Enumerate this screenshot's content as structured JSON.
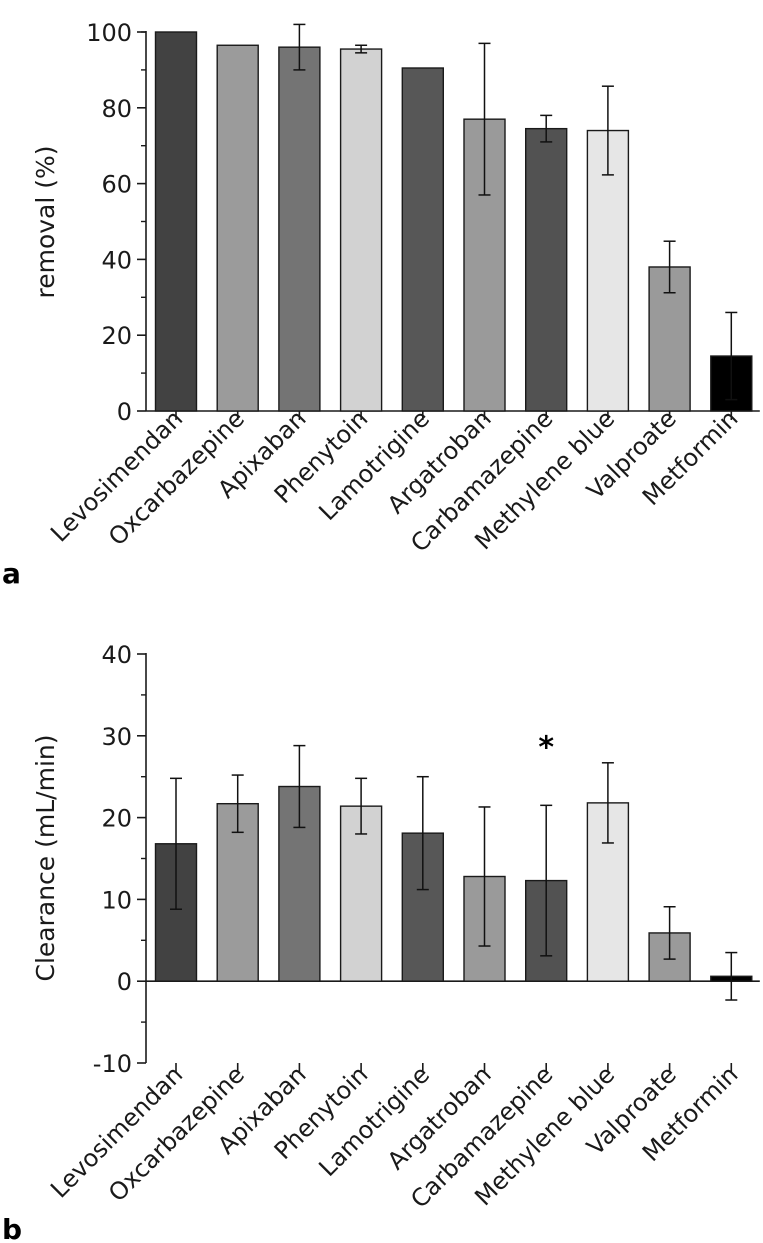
{
  "chart_data": [
    {
      "panel": "a",
      "type": "bar",
      "ylabel": "removal (%)",
      "xlabel": "",
      "ylim": [
        0,
        100
      ],
      "yticks": [
        0,
        20,
        40,
        60,
        80,
        100
      ],
      "ytick_labels": [
        "0",
        "20",
        "40",
        "60",
        "80",
        "100"
      ],
      "categories": [
        "Levosimendan",
        "Oxcarbazepine",
        "Apixaban",
        "Phenytoin",
        "Lamotrigine",
        "Argatroban",
        "Carbamazepine",
        "Methylene blue",
        "Valproate",
        "Metformin"
      ],
      "values": [
        100,
        96.5,
        96,
        95.5,
        90.5,
        77,
        74.5,
        74,
        38,
        14.5
      ],
      "errors": [
        0,
        0,
        6,
        1,
        0,
        20,
        3.5,
        11.7,
        6.8,
        11.5
      ],
      "colors": [
        "#424242",
        "#9b9b9b",
        "#747474",
        "#d2d2d2",
        "#575757",
        "#9a9a9a",
        "#525252",
        "#e6e6e6",
        "#9a9a9a",
        "#000000"
      ],
      "annotations": []
    },
    {
      "panel": "b",
      "type": "bar",
      "ylabel": "Clearance (mL/min)",
      "xlabel": "",
      "ylim": [
        -10,
        40
      ],
      "yticks": [
        -10,
        0,
        10,
        20,
        30,
        40
      ],
      "ytick_labels": [
        "-10",
        "0",
        "10",
        "20",
        "30",
        "40"
      ],
      "categories": [
        "Levosimendan",
        "Oxcarbazepine",
        "Apixaban",
        "Phenytoin",
        "Lamotrigine",
        "Argatroban",
        "Carbamazepine",
        "Methylene blue",
        "Valproate",
        "Metformin"
      ],
      "values": [
        16.8,
        21.7,
        23.8,
        21.4,
        18.1,
        12.8,
        12.3,
        21.8,
        5.9,
        0.6
      ],
      "errors": [
        8,
        3.5,
        5,
        3.4,
        6.9,
        8.5,
        9.2,
        4.9,
        3.2,
        2.9
      ],
      "colors": [
        "#424242",
        "#9b9b9b",
        "#747474",
        "#d2d2d2",
        "#575757",
        "#9a9a9a",
        "#525252",
        "#e6e6e6",
        "#9a9a9a",
        "#000000"
      ],
      "annotations": [
        {
          "category": "Carbamazepine",
          "text": "*"
        }
      ]
    }
  ]
}
